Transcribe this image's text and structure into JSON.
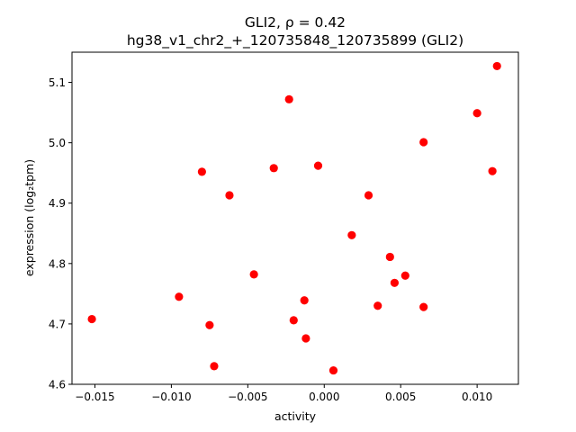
{
  "chart_data": {
    "type": "scatter",
    "title": "GLI2, ρ = 0.42",
    "subtitle": "hg38_v1_chr2_+_120735848_120735899 (GLI2)",
    "xlabel": "activity",
    "ylabel": "expression (log₂tpm)",
    "xlim": [
      -0.0165,
      0.0127
    ],
    "ylim": [
      4.6,
      5.15
    ],
    "xticks": [
      -0.015,
      -0.01,
      -0.005,
      0.0,
      0.005,
      0.01
    ],
    "xtick_labels": [
      "−0.015",
      "−0.010",
      "−0.005",
      "0.000",
      "0.005",
      "0.010"
    ],
    "yticks": [
      4.6,
      4.7,
      4.8,
      4.9,
      5.0,
      5.1
    ],
    "ytick_labels": [
      "4.6",
      "4.7",
      "4.8",
      "4.9",
      "5.0",
      "5.1"
    ],
    "grid": false,
    "marker_color": "#ff0000",
    "points": [
      {
        "x": -0.0152,
        "y": 4.708
      },
      {
        "x": -0.0095,
        "y": 4.745
      },
      {
        "x": -0.008,
        "y": 4.952
      },
      {
        "x": -0.0075,
        "y": 4.698
      },
      {
        "x": -0.0072,
        "y": 4.63
      },
      {
        "x": -0.0062,
        "y": 4.913
      },
      {
        "x": -0.0046,
        "y": 4.782
      },
      {
        "x": -0.0033,
        "y": 4.958
      },
      {
        "x": -0.0023,
        "y": 5.072
      },
      {
        "x": -0.002,
        "y": 4.706
      },
      {
        "x": -0.0013,
        "y": 4.739
      },
      {
        "x": -0.0012,
        "y": 4.676
      },
      {
        "x": -0.0004,
        "y": 4.962
      },
      {
        "x": 0.0006,
        "y": 4.623
      },
      {
        "x": 0.0018,
        "y": 4.847
      },
      {
        "x": 0.0029,
        "y": 4.913
      },
      {
        "x": 0.0035,
        "y": 4.73
      },
      {
        "x": 0.0043,
        "y": 4.811
      },
      {
        "x": 0.0046,
        "y": 4.768
      },
      {
        "x": 0.0053,
        "y": 4.78
      },
      {
        "x": 0.0065,
        "y": 5.001
      },
      {
        "x": 0.0065,
        "y": 4.728
      },
      {
        "x": 0.01,
        "y": 5.049
      },
      {
        "x": 0.011,
        "y": 4.953
      },
      {
        "x": 0.0113,
        "y": 5.127
      }
    ]
  }
}
